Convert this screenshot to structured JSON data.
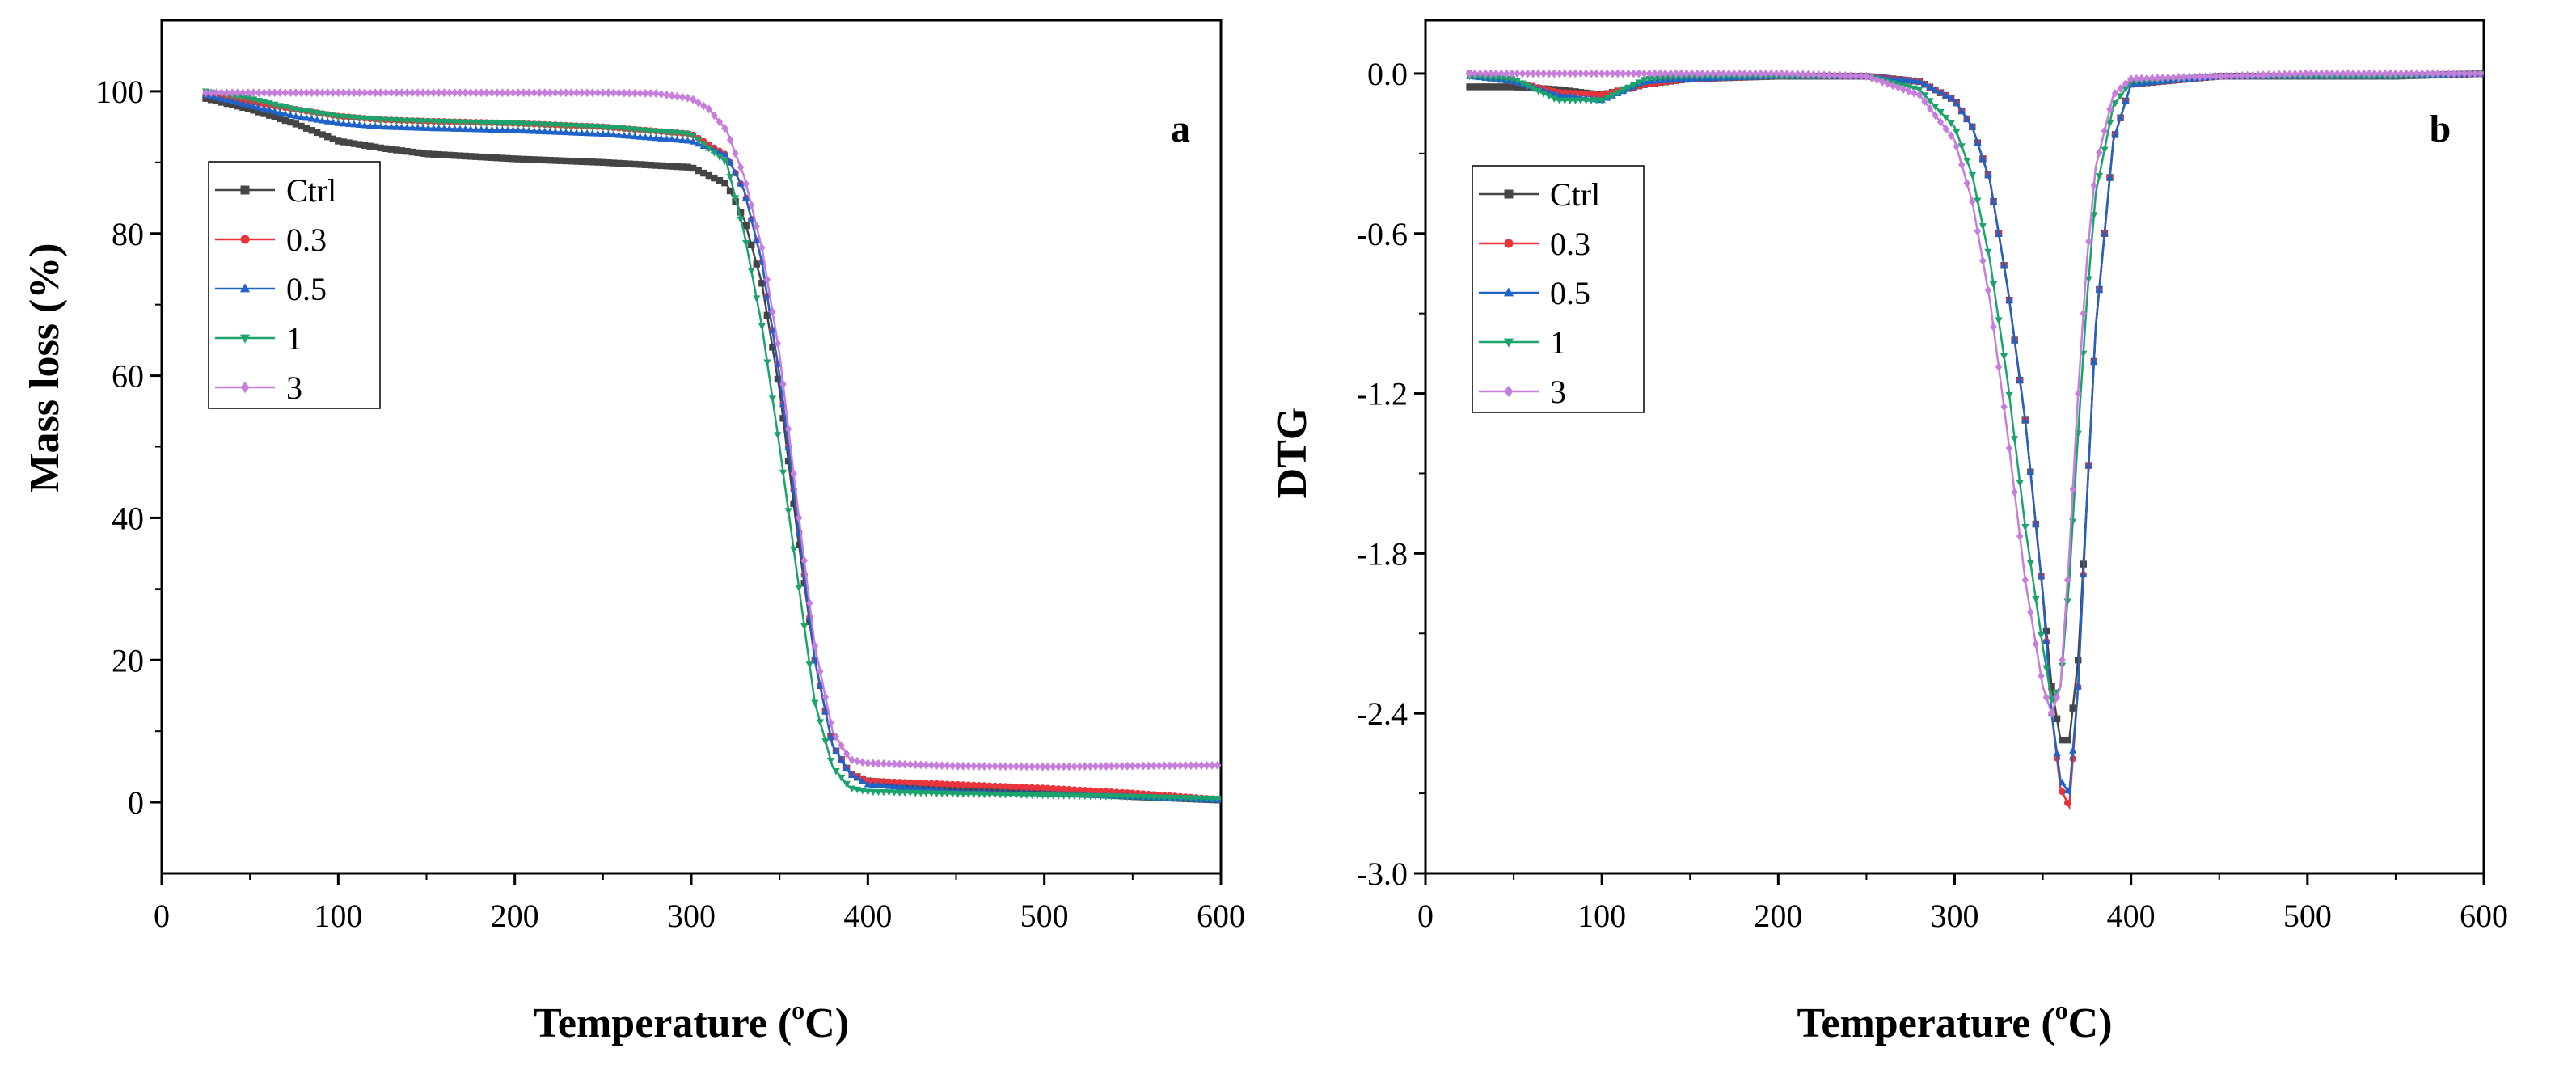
{
  "chart_data": [
    {
      "id": "a",
      "type": "line",
      "panel_label": "a",
      "xlabel": "Temperature (",
      "xlabel_sup": "o",
      "xlabel_suffix": "C)",
      "ylabel": "Mass loss (%)",
      "xlim": [
        0,
        600
      ],
      "ylim": [
        -10,
        110
      ],
      "xticks": [
        "0",
        "100",
        "200",
        "300",
        "400",
        "500",
        "600"
      ],
      "yticks": [
        "0",
        "20",
        "40",
        "60",
        "80",
        "100"
      ],
      "legend_position": "upper-left",
      "series": [
        {
          "name": "Ctrl",
          "color": "#444444",
          "marker": "square",
          "x": [
            25,
            50,
            75,
            100,
            125,
            150,
            200,
            250,
            300,
            320,
            330,
            340,
            350,
            360,
            370,
            380,
            390,
            400,
            450,
            500,
            550,
            600
          ],
          "y": [
            99,
            97.5,
            95.5,
            93,
            92,
            91.2,
            90.5,
            90,
            89.3,
            87,
            82,
            73,
            58,
            38,
            20,
            8,
            4,
            3,
            2,
            1.5,
            0.8,
            0.3
          ]
        },
        {
          "name": "0.3",
          "color": "#e8343a",
          "marker": "circle",
          "x": [
            25,
            50,
            75,
            100,
            125,
            150,
            200,
            250,
            300,
            320,
            330,
            340,
            350,
            360,
            370,
            380,
            390,
            400,
            450,
            500,
            550,
            600
          ],
          "y": [
            99.5,
            98.5,
            97.5,
            96.5,
            96,
            95.8,
            95.5,
            95,
            94,
            91,
            86,
            76,
            60,
            40,
            20,
            8,
            4,
            3,
            2.5,
            2,
            1.3,
            0.4
          ]
        },
        {
          "name": "0.5",
          "color": "#1f63c9",
          "marker": "triangle-up",
          "x": [
            25,
            50,
            75,
            100,
            125,
            150,
            200,
            250,
            300,
            320,
            330,
            340,
            350,
            360,
            370,
            380,
            390,
            400,
            450,
            500,
            550,
            600
          ],
          "y": [
            99.5,
            98,
            96.5,
            95.5,
            95,
            94.8,
            94.5,
            94,
            93,
            91,
            86,
            76,
            60,
            40,
            20,
            8,
            4,
            2.5,
            1.5,
            1.2,
            0.8,
            0.3
          ]
        },
        {
          "name": "1",
          "color": "#1aa36b",
          "marker": "triangle-down",
          "x": [
            25,
            50,
            75,
            100,
            125,
            150,
            200,
            250,
            300,
            320,
            330,
            340,
            350,
            360,
            370,
            380,
            390,
            400,
            450,
            500,
            550,
            600
          ],
          "y": [
            100,
            99,
            97.5,
            96.5,
            96,
            95.8,
            95.5,
            95,
            94,
            90,
            80,
            67,
            50,
            32,
            14,
            5,
            2,
            1.5,
            1.2,
            1,
            0.8,
            0.5
          ]
        },
        {
          "name": "3",
          "color": "#c77ddc",
          "marker": "diamond",
          "x": [
            25,
            50,
            100,
            150,
            200,
            250,
            280,
            300,
            310,
            320,
            330,
            340,
            350,
            360,
            370,
            380,
            390,
            400,
            450,
            500,
            550,
            600
          ],
          "y": [
            99.8,
            99.8,
            99.8,
            99.8,
            99.8,
            99.8,
            99.7,
            99,
            97.5,
            94.5,
            88,
            78,
            63,
            42,
            22,
            10,
            6,
            5.5,
            5.1,
            5,
            5.1,
            5.2
          ]
        }
      ]
    },
    {
      "id": "b",
      "type": "line",
      "panel_label": "b",
      "xlabel": "Temperature (",
      "xlabel_sup": "o",
      "xlabel_suffix": "C)",
      "ylabel": "DTG",
      "xlim": [
        0,
        600
      ],
      "ylim": [
        -3.0,
        0.2
      ],
      "xticks": [
        "0",
        "100",
        "200",
        "300",
        "400",
        "500",
        "600"
      ],
      "yticks": [
        "0.0",
        "-0.6",
        "-1.2",
        "-1.8",
        "-2.4",
        "-3.0"
      ],
      "legend_position": "upper-left",
      "series": [
        {
          "name": "Ctrl",
          "color": "#444444",
          "marker": "square",
          "x": [
            25,
            50,
            75,
            100,
            125,
            150,
            200,
            250,
            280,
            300,
            310,
            320,
            330,
            340,
            350,
            355,
            360,
            365,
            370,
            375,
            380,
            390,
            400,
            450,
            500,
            550,
            600
          ],
          "y": [
            -0.05,
            -0.05,
            -0.06,
            -0.08,
            -0.04,
            -0.02,
            -0.01,
            -0.01,
            -0.03,
            -0.1,
            -0.2,
            -0.4,
            -0.8,
            -1.3,
            -1.95,
            -2.3,
            -2.5,
            -2.5,
            -2.2,
            -1.6,
            -0.95,
            -0.25,
            -0.04,
            -0.01,
            -0.01,
            -0.01,
            0.0
          ]
        },
        {
          "name": "0.3",
          "color": "#e8343a",
          "marker": "circle",
          "x": [
            25,
            50,
            75,
            100,
            125,
            150,
            200,
            250,
            280,
            300,
            310,
            320,
            330,
            340,
            350,
            355,
            360,
            365,
            370,
            375,
            380,
            390,
            400,
            450,
            500,
            550,
            600
          ],
          "y": [
            0.0,
            -0.03,
            -0.07,
            -0.08,
            -0.04,
            -0.02,
            -0.01,
            -0.01,
            -0.03,
            -0.1,
            -0.2,
            -0.4,
            -0.8,
            -1.3,
            -1.95,
            -2.4,
            -2.68,
            -2.75,
            -2.3,
            -1.6,
            -0.95,
            -0.25,
            -0.04,
            -0.01,
            -0.01,
            -0.01,
            0.0
          ]
        },
        {
          "name": "0.5",
          "color": "#1f63c9",
          "marker": "triangle-up",
          "x": [
            25,
            50,
            75,
            100,
            125,
            150,
            200,
            250,
            280,
            300,
            310,
            320,
            330,
            340,
            350,
            355,
            360,
            365,
            370,
            375,
            380,
            390,
            400,
            450,
            500,
            550,
            600
          ],
          "y": [
            -0.01,
            -0.03,
            -0.08,
            -0.1,
            -0.03,
            -0.02,
            -0.01,
            -0.01,
            -0.03,
            -0.1,
            -0.2,
            -0.4,
            -0.8,
            -1.3,
            -1.95,
            -2.4,
            -2.65,
            -2.7,
            -2.3,
            -1.6,
            -0.95,
            -0.25,
            -0.04,
            -0.01,
            -0.01,
            -0.01,
            0.0
          ]
        },
        {
          "name": "1",
          "color": "#1aa36b",
          "marker": "triangle-down",
          "x": [
            25,
            50,
            75,
            100,
            125,
            150,
            200,
            250,
            280,
            300,
            310,
            320,
            330,
            340,
            350,
            355,
            360,
            365,
            370,
            375,
            380,
            390,
            400,
            450,
            500,
            550,
            600
          ],
          "y": [
            -0.01,
            -0.02,
            -0.1,
            -0.1,
            -0.02,
            -0.01,
            -0.01,
            -0.01,
            -0.06,
            -0.2,
            -0.38,
            -0.7,
            -1.15,
            -1.7,
            -2.15,
            -2.35,
            -2.3,
            -1.9,
            -1.35,
            -0.85,
            -0.45,
            -0.12,
            -0.03,
            -0.01,
            -0.01,
            -0.01,
            0.0
          ]
        },
        {
          "name": "3",
          "color": "#c77ddc",
          "marker": "diamond",
          "x": [
            25,
            50,
            75,
            100,
            125,
            150,
            200,
            250,
            280,
            300,
            310,
            320,
            330,
            340,
            350,
            355,
            360,
            365,
            370,
            375,
            380,
            390,
            400,
            450,
            500,
            550,
            600
          ],
          "y": [
            0.0,
            0.0,
            0.0,
            0.0,
            0.0,
            0.0,
            0.0,
            -0.01,
            -0.08,
            -0.25,
            -0.48,
            -0.85,
            -1.35,
            -1.9,
            -2.3,
            -2.4,
            -2.3,
            -1.8,
            -1.2,
            -0.7,
            -0.35,
            -0.08,
            -0.02,
            -0.01,
            0.0,
            0.0,
            0.0
          ]
        }
      ]
    }
  ]
}
